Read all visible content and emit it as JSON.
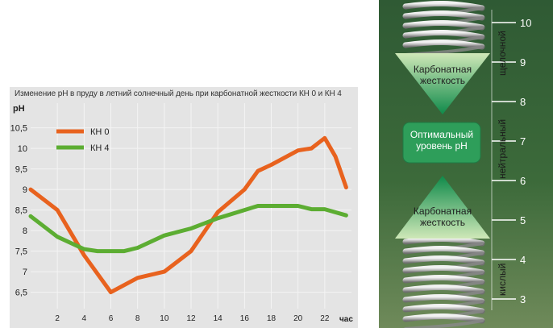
{
  "chart_data": {
    "type": "line",
    "title": "Изменение pH в пруду в летний солнечный день при карбонатной жесткости КН 0 и КН 4",
    "ylabel": "pH",
    "xlabel": "час",
    "ylim": [
      6.1,
      11.1
    ],
    "xlim": [
      0,
      24
    ],
    "yticks": [
      "6,5",
      "7",
      "7,5",
      "8",
      "8,5",
      "9",
      "9,5",
      "10",
      "10,5"
    ],
    "ytick_values": [
      6.5,
      7,
      7.5,
      8,
      8.5,
      9,
      9.5,
      10,
      10.5
    ],
    "xticks": [
      "2",
      "4",
      "6",
      "8",
      "10",
      "12",
      "14",
      "16",
      "18",
      "20",
      "22"
    ],
    "xtick_values": [
      2,
      4,
      6,
      8,
      10,
      12,
      14,
      16,
      18,
      20,
      22
    ],
    "legend_position": "top-left",
    "series": [
      {
        "name": "КН 0",
        "color": "#e8621e",
        "x": [
          0,
          2,
          4,
          6,
          8,
          10,
          12,
          14,
          16,
          17,
          18,
          20,
          21,
          22,
          22.8,
          23.6
        ],
        "y": [
          9.0,
          8.5,
          7.4,
          6.5,
          6.85,
          7.0,
          7.5,
          8.45,
          9.0,
          9.45,
          9.6,
          9.95,
          10.0,
          10.25,
          9.8,
          9.05
        ]
      },
      {
        "name": "КН 4",
        "color": "#5cad32",
        "x": [
          0,
          2,
          4,
          5,
          6,
          7,
          8,
          10,
          12,
          14,
          16,
          17,
          18,
          20,
          21,
          22,
          23.6
        ],
        "y": [
          8.35,
          7.85,
          7.55,
          7.5,
          7.5,
          7.5,
          7.58,
          7.88,
          8.05,
          8.3,
          8.5,
          8.6,
          8.6,
          8.6,
          8.52,
          8.52,
          8.37
        ]
      }
    ]
  },
  "scale": {
    "top_label": "Карбонатная\nжесткость",
    "middle_label": "Оптимальный\nуровень рН",
    "bottom_label": "Карбонатная\nжесткость",
    "zones": [
      "щелочной",
      "нейтральный",
      "кислый"
    ],
    "ticks": [
      "10",
      "9",
      "8",
      "7",
      "6",
      "5",
      "4",
      "3"
    ],
    "tick_values": [
      10,
      9,
      8,
      7,
      6,
      5,
      4,
      3
    ],
    "colors": {
      "spring": "#b8b8b8",
      "triangle_light": "#cfe8b8",
      "triangle_dark": "#0f8a4a",
      "optimal_box": "#2e9e5a",
      "tick": "#ffffff"
    }
  }
}
